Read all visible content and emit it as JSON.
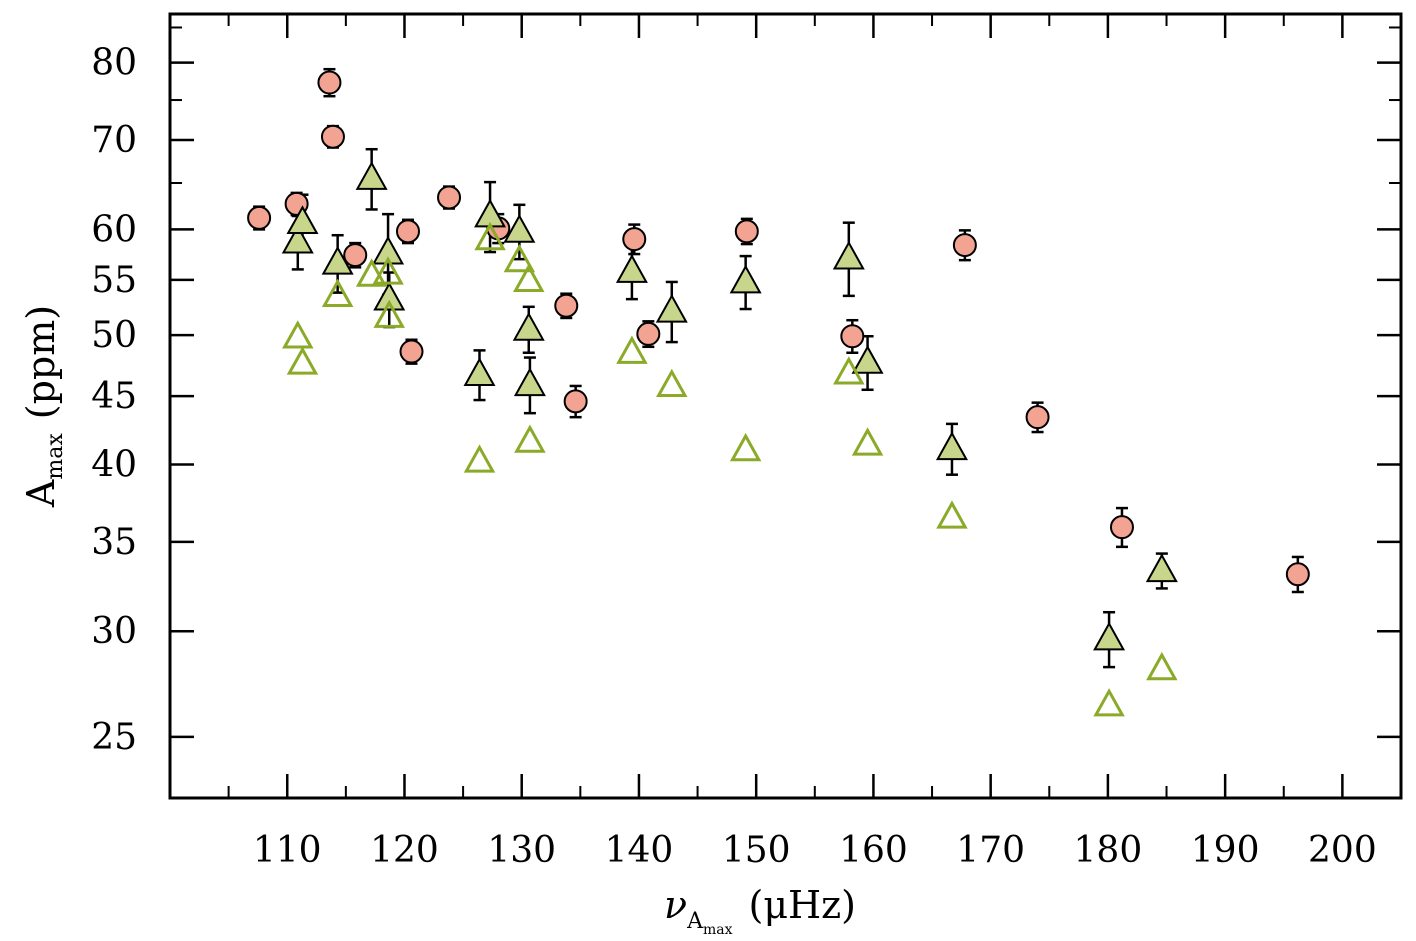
{
  "chart_data": {
    "type": "scatter",
    "xlabel": {
      "symbol": "ν",
      "sub_main": "A",
      "sub_sub": "max",
      "unit": "(μHz)"
    },
    "ylabel": {
      "main": "A",
      "sub": "max",
      "unit": "(ppm)"
    },
    "xlim": [
      100,
      205
    ],
    "ylim": [
      22.5,
      87
    ],
    "y_scale": "log",
    "x_ticks": [
      110,
      120,
      130,
      140,
      150,
      160,
      170,
      180,
      190,
      200
    ],
    "y_ticks": [
      25,
      30,
      35,
      40,
      45,
      50,
      55,
      60,
      70,
      80
    ],
    "grid": false,
    "colors": {
      "circle_fill": "#f2a392",
      "triangle_fill": "#c8d68c",
      "open_triangle": "#8aaa28",
      "stroke": "#000000"
    },
    "series": [
      {
        "marker": "circle-filled",
        "points": [
          {
            "x": 107.6,
            "y": 61.2,
            "err": 1.2
          },
          {
            "x": 110.8,
            "y": 62.7,
            "err": 1.2
          },
          {
            "x": 113.6,
            "y": 77.3,
            "err": 1.8
          },
          {
            "x": 113.9,
            "y": 70.4,
            "err": 1.3
          },
          {
            "x": 115.8,
            "y": 57.4,
            "err": 1.2
          },
          {
            "x": 120.3,
            "y": 59.8,
            "err": 1.2
          },
          {
            "x": 120.6,
            "y": 48.6,
            "err": 1.0
          },
          {
            "x": 123.8,
            "y": 63.4,
            "err": 1.2
          },
          {
            "x": 128.0,
            "y": 60.1,
            "err": 1.5
          },
          {
            "x": 133.8,
            "y": 52.6,
            "err": 1.1
          },
          {
            "x": 134.6,
            "y": 44.6,
            "err": 1.2
          },
          {
            "x": 139.6,
            "y": 59.0,
            "err": 1.5
          },
          {
            "x": 140.8,
            "y": 50.1,
            "err": 1.1
          },
          {
            "x": 149.2,
            "y": 59.8,
            "err": 1.3
          },
          {
            "x": 158.2,
            "y": 49.9,
            "err": 1.4
          },
          {
            "x": 167.8,
            "y": 58.4,
            "err": 1.5
          },
          {
            "x": 174.0,
            "y": 43.4,
            "err": 1.1
          },
          {
            "x": 181.2,
            "y": 35.9,
            "err": 1.2
          },
          {
            "x": 196.2,
            "y": 33.1,
            "err": 1.0
          }
        ]
      },
      {
        "marker": "triangle-filled",
        "points": [
          {
            "x": 110.9,
            "y": 58.7,
            "err": 2.7
          },
          {
            "x": 111.3,
            "y": 60.7,
            "err": 3.0
          },
          {
            "x": 114.3,
            "y": 56.6,
            "err": 2.8
          },
          {
            "x": 117.2,
            "y": 65.5,
            "err": 3.4
          },
          {
            "x": 118.6,
            "y": 57.6,
            "err": 4.0
          },
          {
            "x": 118.7,
            "y": 53.2,
            "err": 2.5
          },
          {
            "x": 126.4,
            "y": 46.7,
            "err": 2.0
          },
          {
            "x": 127.3,
            "y": 61.4,
            "err": 3.7
          },
          {
            "x": 129.8,
            "y": 59.8,
            "err": 2.8
          },
          {
            "x": 130.6,
            "y": 50.5,
            "err": 2.0
          },
          {
            "x": 130.7,
            "y": 45.9,
            "err": 2.2
          },
          {
            "x": 139.4,
            "y": 55.8,
            "err": 2.6
          },
          {
            "x": 142.8,
            "y": 52.1,
            "err": 2.7
          },
          {
            "x": 149.1,
            "y": 54.8,
            "err": 2.5
          },
          {
            "x": 157.9,
            "y": 57.1,
            "err": 3.6
          },
          {
            "x": 159.5,
            "y": 47.7,
            "err": 2.2
          },
          {
            "x": 166.7,
            "y": 41.1,
            "err": 1.8
          },
          {
            "x": 180.1,
            "y": 29.6,
            "err": 1.4
          },
          {
            "x": 184.6,
            "y": 33.3,
            "err": 1.0
          }
        ]
      },
      {
        "marker": "triangle-open",
        "points": [
          {
            "x": 110.9,
            "y": 49.8
          },
          {
            "x": 111.3,
            "y": 47.6
          },
          {
            "x": 114.3,
            "y": 53.5
          },
          {
            "x": 117.2,
            "y": 55.4
          },
          {
            "x": 118.6,
            "y": 55.6
          },
          {
            "x": 118.7,
            "y": 51.6
          },
          {
            "x": 126.4,
            "y": 40.2
          },
          {
            "x": 127.3,
            "y": 59.0
          },
          {
            "x": 129.8,
            "y": 56.8
          },
          {
            "x": 130.6,
            "y": 54.9
          },
          {
            "x": 130.7,
            "y": 41.6
          },
          {
            "x": 139.4,
            "y": 48.5
          },
          {
            "x": 142.8,
            "y": 45.8
          },
          {
            "x": 149.1,
            "y": 41.0
          },
          {
            "x": 157.9,
            "y": 46.8
          },
          {
            "x": 159.5,
            "y": 41.4
          },
          {
            "x": 166.7,
            "y": 36.5
          },
          {
            "x": 180.1,
            "y": 26.4
          },
          {
            "x": 184.6,
            "y": 28.1
          }
        ]
      }
    ]
  }
}
